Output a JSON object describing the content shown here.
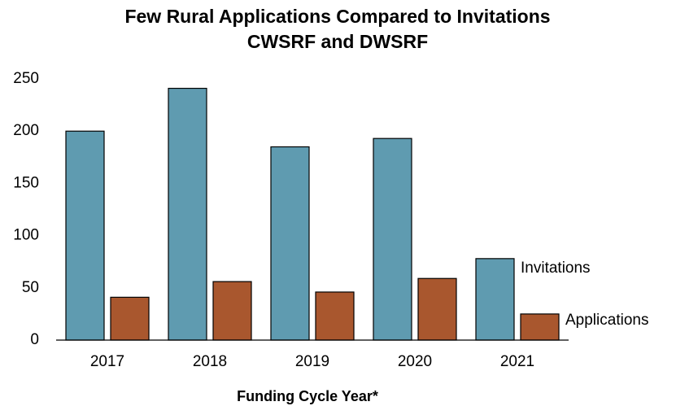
{
  "chart_data": {
    "type": "bar",
    "title": "Few Rural Applications Compared to Invitations",
    "subtitle": "CWSRF and DWSRF",
    "x_label": "Funding Cycle Year*",
    "categories": [
      "2017",
      "2018",
      "2019",
      "2020",
      "2021"
    ],
    "series": [
      {
        "name": "Invitations",
        "color": "#5f9bb0",
        "values": [
          200,
          241,
          185,
          193,
          78
        ]
      },
      {
        "name": "Applications",
        "color": "#a9572e",
        "values": [
          41,
          56,
          46,
          59,
          25
        ]
      }
    ],
    "ylim": [
      0,
      250
    ],
    "yticks": [
      0,
      50,
      100,
      150,
      200,
      250
    ],
    "grid": false
  }
}
